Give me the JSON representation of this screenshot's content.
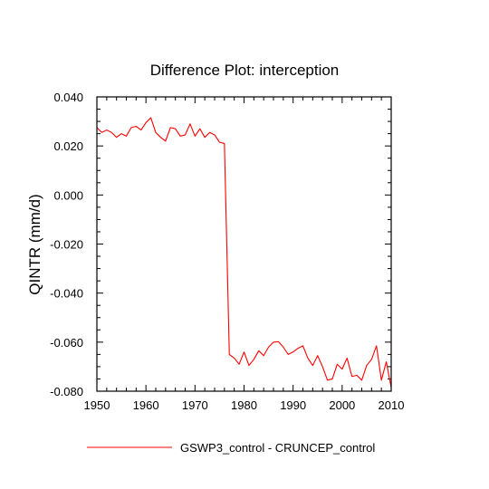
{
  "chart_data": {
    "type": "line",
    "title": "Difference Plot: interception",
    "xlabel": "",
    "ylabel": "QINTR  (mm/d)",
    "xlim": [
      1950,
      2010
    ],
    "ylim": [
      -0.08,
      0.04
    ],
    "xticks": [
      1950,
      1960,
      1970,
      1980,
      1990,
      2000,
      2010
    ],
    "xtick_labels": [
      "1950",
      "1960",
      "1970",
      "1980",
      "1990",
      "2000",
      "2010"
    ],
    "yticks": [
      0.04,
      0.02,
      0.0,
      -0.02,
      -0.04,
      -0.06,
      -0.08
    ],
    "ytick_labels": [
      "0.040",
      "0.020",
      "0.000",
      "-0.020",
      "-0.040",
      "-0.060",
      "-0.080"
    ],
    "grid": false,
    "legend_position": "bottom",
    "series": [
      {
        "name": "GSWP3_control - CRUNCEP_control",
        "color": "#ff0000",
        "x": [
          1950,
          1951,
          1952,
          1953,
          1954,
          1955,
          1956,
          1957,
          1958,
          1959,
          1960,
          1961,
          1962,
          1963,
          1964,
          1965,
          1966,
          1967,
          1968,
          1969,
          1970,
          1971,
          1972,
          1973,
          1974,
          1975,
          1976,
          1977,
          1978,
          1979,
          1980,
          1981,
          1982,
          1983,
          1984,
          1985,
          1986,
          1987,
          1988,
          1989,
          1990,
          1991,
          1992,
          1993,
          1994,
          1995,
          1996,
          1997,
          1998,
          1999,
          2000,
          2001,
          2002,
          2003,
          2004,
          2005,
          2006,
          2007,
          2008,
          2009,
          2010
        ],
        "y": [
          0.0275,
          0.0255,
          0.0265,
          0.0255,
          0.0235,
          0.025,
          0.024,
          0.0275,
          0.028,
          0.0265,
          0.0295,
          0.0315,
          0.0255,
          0.0235,
          0.022,
          0.0275,
          0.027,
          0.024,
          0.0245,
          0.029,
          0.024,
          0.027,
          0.0235,
          0.0255,
          0.0245,
          0.0215,
          0.021,
          -0.065,
          -0.0665,
          -0.069,
          -0.064,
          -0.0695,
          -0.067,
          -0.0635,
          -0.0655,
          -0.062,
          -0.06,
          -0.0598,
          -0.062,
          -0.065,
          -0.064,
          -0.0625,
          -0.0615,
          -0.0665,
          -0.0695,
          -0.0655,
          -0.07,
          -0.0755,
          -0.075,
          -0.069,
          -0.071,
          -0.0665,
          -0.074,
          -0.0735,
          -0.0755,
          -0.0695,
          -0.067,
          -0.0615,
          -0.0755,
          -0.068,
          -0.0785
        ]
      }
    ]
  }
}
